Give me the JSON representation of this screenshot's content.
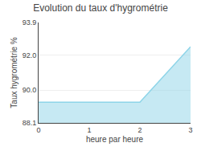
{
  "chart_data": {
    "type": "area",
    "title": "Evolution du taux d'hygrométrie",
    "xlabel": "heure par heure",
    "ylabel": "Taux hygrométrie %",
    "x": [
      0,
      1,
      2,
      3
    ],
    "values": [
      89.3,
      89.3,
      89.3,
      92.5
    ],
    "color": "#8dd4e8",
    "xlim": [
      0,
      3
    ],
    "ylim": [
      88.1,
      93.9
    ],
    "xticks": [
      0,
      1,
      2,
      3
    ],
    "yticks": [
      88.1,
      {
        "value": 90.0,
        "label": "90.0"
      },
      {
        "value": 92.0,
        "label": "92.0"
      },
      93.9
    ],
    "grid": "y"
  }
}
